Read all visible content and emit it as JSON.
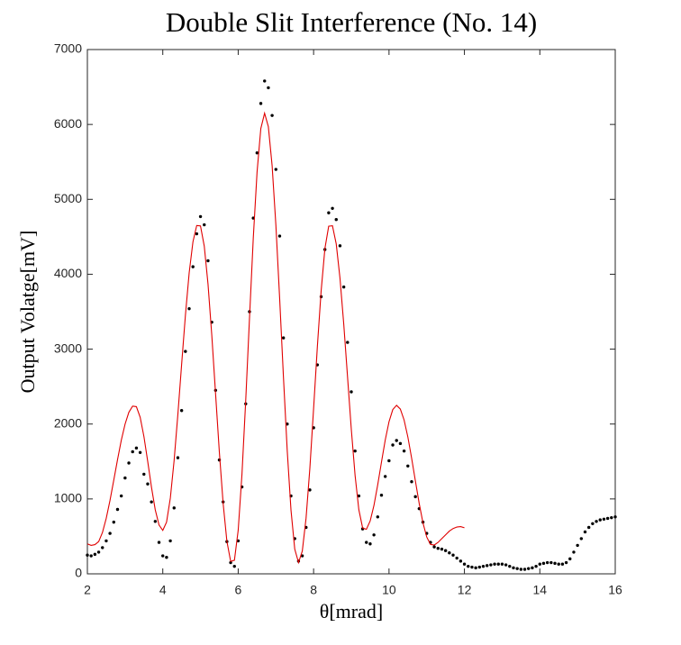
{
  "chart_data": {
    "type": "scatter",
    "title": "Double Slit Interference (No. 14)",
    "x_label": "θ[mrad]",
    "y_label": "Output Volatge[mV]",
    "xlim": [
      2,
      16
    ],
    "ylim": [
      0,
      7000
    ],
    "xticks": [
      2,
      4,
      6,
      8,
      10,
      12,
      14,
      16
    ],
    "yticks": [
      0,
      1000,
      2000,
      3000,
      4000,
      5000,
      6000,
      7000
    ],
    "grid": false,
    "box": true,
    "series": [
      {
        "style": "dots",
        "color": "#000000",
        "x": [
          2,
          2.1,
          2.2,
          2.3,
          2.4,
          2.5,
          2.6,
          2.7,
          2.8,
          2.9,
          3,
          3.1,
          3.2,
          3.3,
          3.4,
          3.5,
          3.6,
          3.7,
          3.8,
          3.9,
          4,
          4.1,
          4.2,
          4.3,
          4.4,
          4.5,
          4.6,
          4.7,
          4.8,
          4.9,
          5,
          5.1,
          5.2,
          5.3,
          5.4,
          5.5,
          5.6,
          5.7,
          5.8,
          5.9,
          6,
          6.1,
          6.2,
          6.3,
          6.4,
          6.5,
          6.6,
          6.7,
          6.8,
          6.9,
          7,
          7.1,
          7.2,
          7.3,
          7.4,
          7.5,
          7.6,
          7.7,
          7.8,
          7.9,
          8,
          8.1,
          8.2,
          8.3,
          8.4,
          8.5,
          8.6,
          8.7,
          8.8,
          8.9,
          9,
          9.1,
          9.2,
          9.3,
          9.4,
          9.5,
          9.6,
          9.7,
          9.8,
          9.9,
          10,
          10.1,
          10.2,
          10.3,
          10.4,
          10.5,
          10.6,
          10.7,
          10.8,
          10.9,
          11,
          11.1,
          11.2,
          11.3,
          11.4,
          11.5,
          11.6,
          11.7,
          11.8,
          11.9,
          12,
          12.1,
          12.2,
          12.3,
          12.4,
          12.5,
          12.6,
          12.7,
          12.8,
          12.9,
          13,
          13.1,
          13.2,
          13.3,
          13.4,
          13.5,
          13.6,
          13.7,
          13.8,
          13.9,
          14,
          14.1,
          14.2,
          14.3,
          14.4,
          14.5,
          14.6,
          14.7,
          14.8,
          14.9,
          15,
          15.1,
          15.2,
          15.3,
          15.4,
          15.5,
          15.6,
          15.7,
          15.8,
          15.9,
          16
        ],
        "values": [
          250,
          240,
          260,
          290,
          350,
          440,
          540,
          690,
          860,
          1040,
          1280,
          1480,
          1630,
          1680,
          1620,
          1330,
          1200,
          960,
          700,
          420,
          240,
          220,
          440,
          880,
          1550,
          2180,
          2970,
          3540,
          4100,
          4540,
          4770,
          4660,
          4180,
          3360,
          2450,
          1520,
          960,
          430,
          150,
          100,
          440,
          1160,
          2270,
          3500,
          4750,
          5620,
          6280,
          6580,
          6490,
          6120,
          5400,
          4510,
          3150,
          2000,
          1040,
          470,
          170,
          240,
          620,
          1120,
          1950,
          2790,
          3700,
          4330,
          4820,
          4880,
          4730,
          4380,
          3830,
          3090,
          2430,
          1640,
          1040,
          600,
          420,
          400,
          520,
          760,
          1050,
          1300,
          1510,
          1720,
          1780,
          1740,
          1640,
          1440,
          1230,
          1030,
          870,
          690,
          540,
          420,
          360,
          340,
          330,
          310,
          280,
          250,
          210,
          170,
          130,
          100,
          90,
          80,
          90,
          100,
          110,
          120,
          130,
          130,
          130,
          120,
          100,
          80,
          70,
          60,
          60,
          70,
          80,
          100,
          130,
          140,
          150,
          150,
          140,
          130,
          130,
          150,
          200,
          290,
          380,
          470,
          560,
          620,
          670,
          700,
          720,
          730,
          740,
          750,
          760
        ]
      },
      {
        "style": "line",
        "color": "#e00000",
        "x": [
          2,
          2.1,
          2.2,
          2.3,
          2.4,
          2.5,
          2.6,
          2.7,
          2.8,
          2.9,
          3,
          3.1,
          3.2,
          3.3,
          3.4,
          3.5,
          3.6,
          3.7,
          3.8,
          3.9,
          4,
          4.1,
          4.2,
          4.3,
          4.4,
          4.5,
          4.6,
          4.7,
          4.8,
          4.9,
          5,
          5.1,
          5.2,
          5.3,
          5.4,
          5.5,
          5.6,
          5.7,
          5.8,
          5.9,
          6,
          6.1,
          6.2,
          6.3,
          6.4,
          6.5,
          6.6,
          6.7,
          6.8,
          6.9,
          7,
          7.1,
          7.2,
          7.3,
          7.4,
          7.5,
          7.6,
          7.7,
          7.8,
          7.9,
          8,
          8.1,
          8.2,
          8.3,
          8.4,
          8.5,
          8.6,
          8.7,
          8.8,
          8.9,
          9,
          9.1,
          9.2,
          9.3,
          9.4,
          9.5,
          9.6,
          9.7,
          9.8,
          9.9,
          10,
          10.1,
          10.2,
          10.3,
          10.4,
          10.5,
          10.6,
          10.7,
          10.8,
          10.9,
          11,
          11.1,
          11.2,
          11.3,
          11.4,
          11.5,
          11.6,
          11.7,
          11.8,
          11.9,
          12
        ],
        "values": [
          400,
          380,
          390,
          431,
          552,
          741,
          980,
          1251,
          1526,
          1785,
          2000,
          2157,
          2239,
          2232,
          2091,
          1832,
          1502,
          1156,
          856,
          652,
          580,
          691,
          1011,
          1511,
          2130,
          2798,
          3452,
          4019,
          4433,
          4651,
          4645,
          4375,
          3866,
          3183,
          2405,
          1627,
          944,
          435,
          166,
          181,
          582,
          1329,
          2320,
          3417,
          4482,
          5362,
          5945,
          6150,
          5970,
          5448,
          4650,
          3672,
          2628,
          1650,
          852,
          330,
          150,
          304,
          743,
          1405,
          2207,
          3036,
          3779,
          4344,
          4641,
          4647,
          4405,
          3946,
          3331,
          2630,
          1929,
          1314,
          855,
          613,
          594,
          705,
          912,
          1188,
          1492,
          1787,
          2031,
          2193,
          2250,
          2200,
          2054,
          1826,
          1543,
          1238,
          941,
          681,
          492,
          393,
          385,
          420,
          470,
          520,
          570,
          605,
          625,
          630,
          615
        ]
      }
    ]
  }
}
